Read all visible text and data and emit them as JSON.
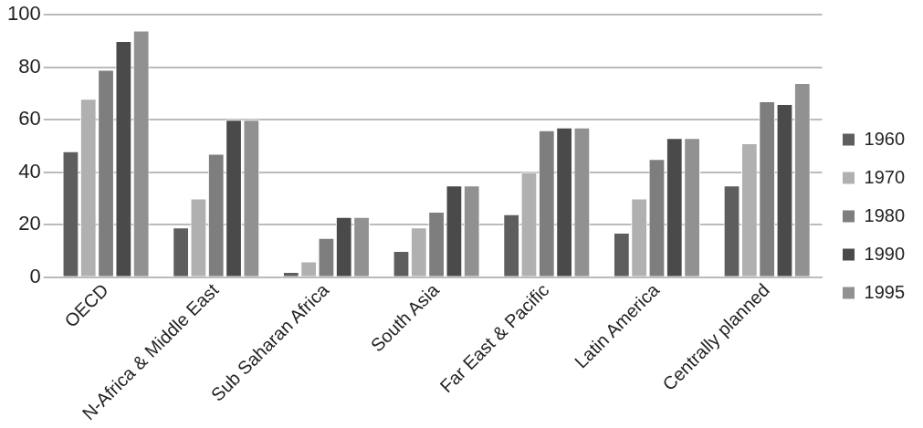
{
  "chart_data": {
    "type": "bar",
    "categories": [
      "OECD",
      "N-Africa & Middle East",
      "Sub Saharan Africa",
      "South Asia",
      "Far East & Pacific",
      "Latin America",
      "Centrally planned"
    ],
    "series": [
      {
        "name": "1960",
        "color": "#5e5e5e",
        "values": [
          48,
          19,
          2,
          10,
          24,
          17,
          35
        ]
      },
      {
        "name": "1970",
        "color": "#b0b0b0",
        "values": [
          68,
          30,
          6,
          19,
          40,
          30,
          51
        ]
      },
      {
        "name": "1980",
        "color": "#7e7e7e",
        "values": [
          79,
          47,
          15,
          25,
          56,
          45,
          67
        ]
      },
      {
        "name": "1990",
        "color": "#4a4a4a",
        "values": [
          90,
          60,
          23,
          35,
          57,
          53,
          66
        ]
      },
      {
        "name": "1995",
        "color": "#919191",
        "values": [
          94,
          60,
          23,
          35,
          57,
          53,
          74
        ]
      }
    ],
    "ylim": [
      0,
      100
    ],
    "yticks": [
      0,
      20,
      40,
      60,
      80,
      100
    ],
    "grid": "y",
    "legend": "right"
  }
}
